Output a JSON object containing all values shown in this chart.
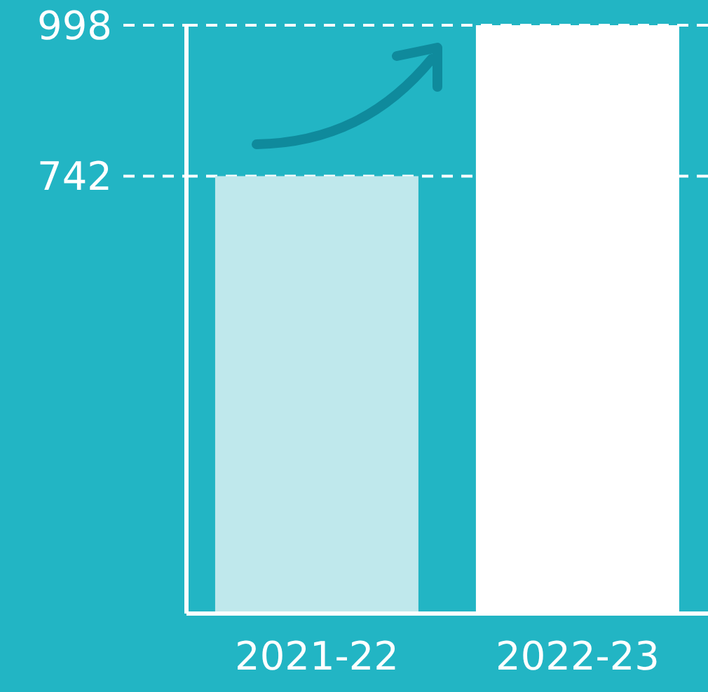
{
  "chart_data": {
    "type": "bar",
    "categories": [
      "2021-22",
      "2022-23"
    ],
    "values": [
      742,
      998
    ],
    "colors": [
      "#bfe8ec",
      "#ffffff"
    ],
    "ylim": [
      0,
      998
    ],
    "yticks": [
      742,
      998
    ],
    "grid": "y"
  }
}
